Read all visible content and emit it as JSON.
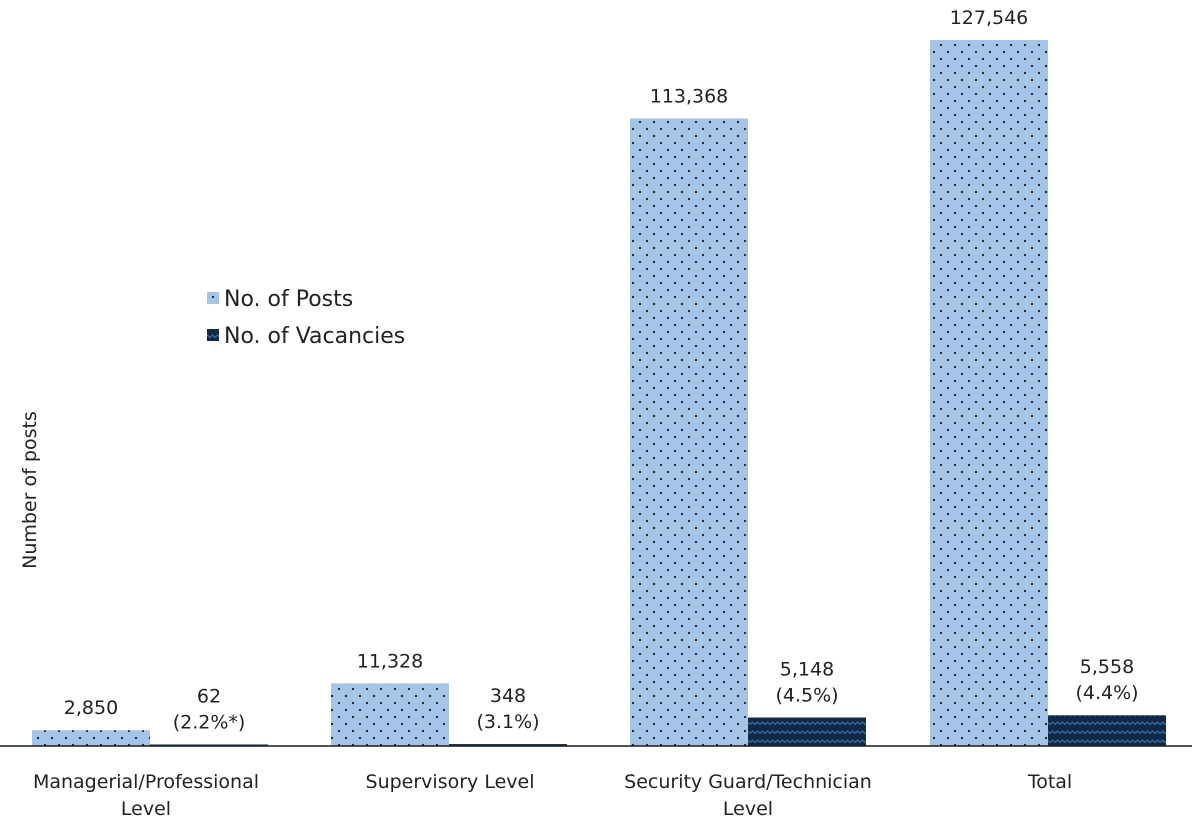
{
  "chart_data": {
    "type": "bar",
    "title": "",
    "xlabel": "",
    "ylabel": "Number of posts",
    "ylim": [
      0,
      132000
    ],
    "grid": false,
    "legend_position": "left-middle",
    "categories": [
      "Managerial/Professional Level",
      "Supervisory Level",
      "Security Guard/Technician Level",
      "Total"
    ],
    "series": [
      {
        "name": "No. of Posts",
        "color": "#a4c4e8",
        "pattern": "dots",
        "values": [
          2850,
          11328,
          113368,
          127546
        ],
        "labels": [
          [
            "2,850"
          ],
          [
            "11,328"
          ],
          [
            "113,368"
          ],
          [
            "127,546"
          ]
        ]
      },
      {
        "name": "No. of Vacancies",
        "color": "#0f2a48",
        "pattern": "waves",
        "values": [
          62,
          348,
          5148,
          5558
        ],
        "labels": [
          [
            "62",
            "(2.2%*)"
          ],
          [
            "348",
            "(3.1%)"
          ],
          [
            "5,148",
            "(4.5%)"
          ],
          [
            "5,558",
            "(4.4%)"
          ]
        ]
      }
    ]
  }
}
